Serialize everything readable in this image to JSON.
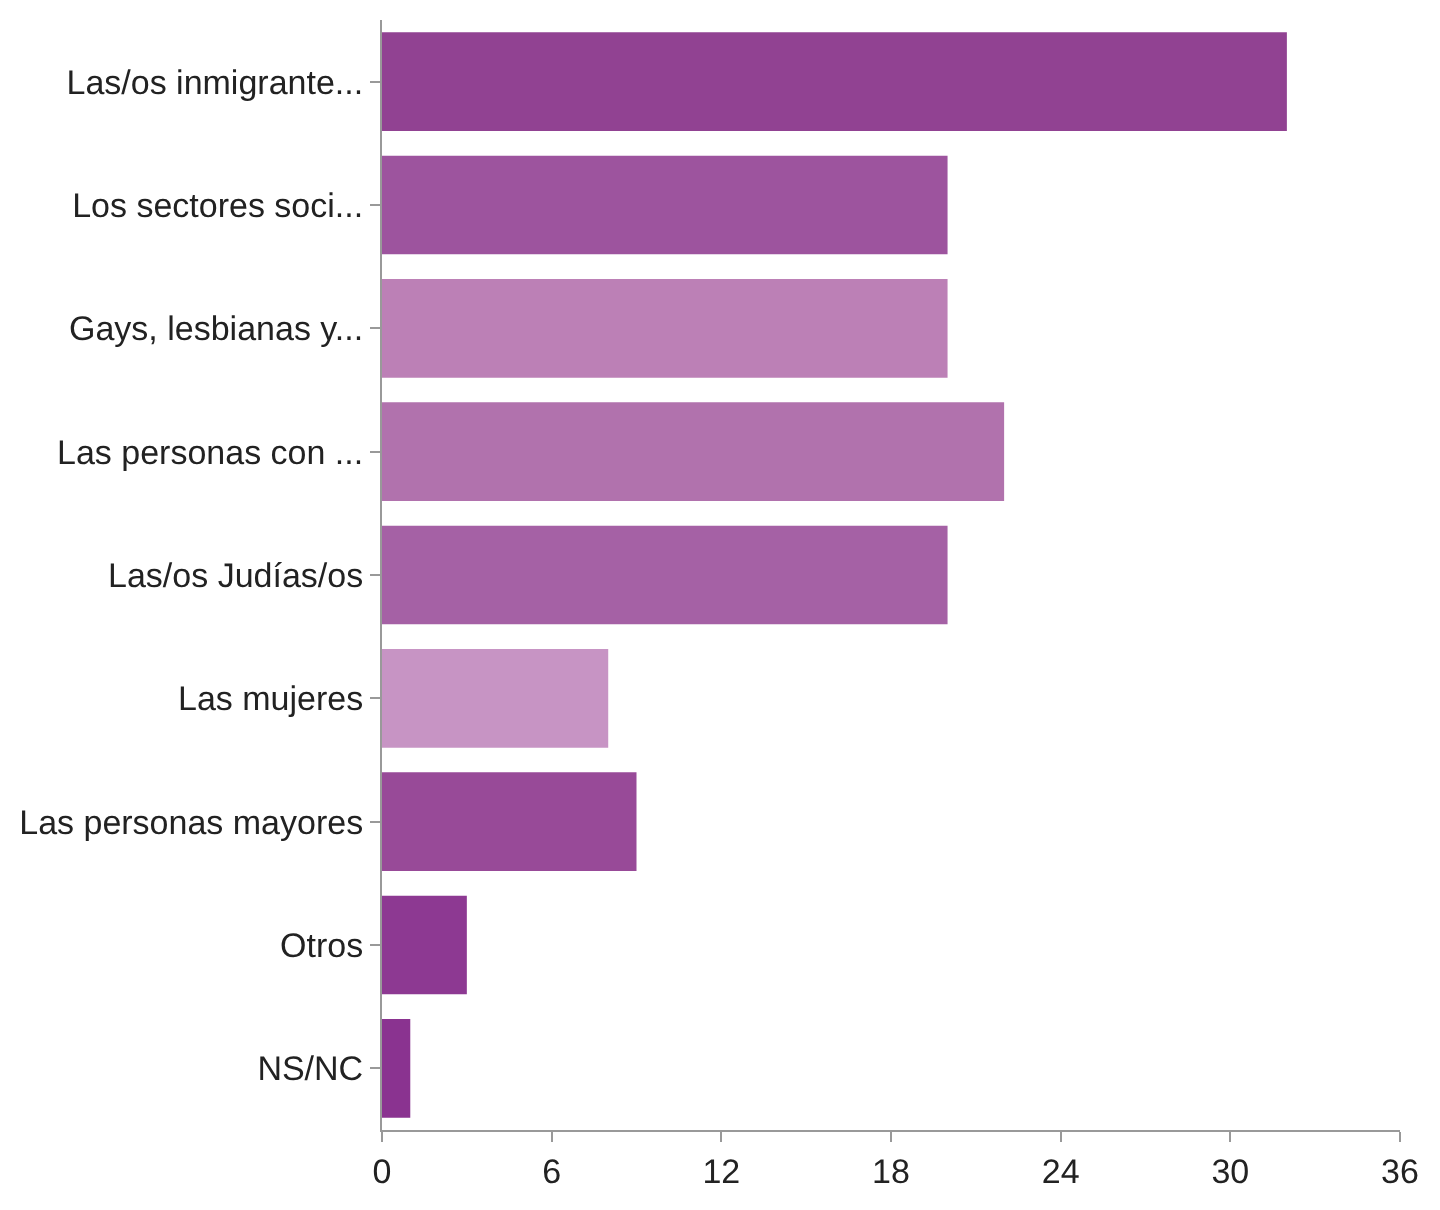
{
  "chart_data": {
    "type": "bar",
    "orientation": "horizontal",
    "categories": [
      "Las/os inmigrante...",
      "Los sectores soci...",
      "Gays, lesbianas y...",
      "Las personas con ...",
      "Las/os Judías/os",
      "Las mujeres",
      "Las personas mayores",
      "Otros",
      "NS/NC"
    ],
    "values": [
      32,
      20,
      20,
      22,
      20,
      8,
      9,
      3,
      1
    ],
    "colors": [
      "#914292",
      "#9d549e",
      "#bc80b6",
      "#b172ad",
      "#a561a5",
      "#c794c4",
      "#984a98",
      "#8d3992",
      "#8a3390"
    ],
    "xlim": [
      0,
      36
    ],
    "xticks": [
      0,
      6,
      12,
      18,
      24,
      30,
      36
    ]
  }
}
